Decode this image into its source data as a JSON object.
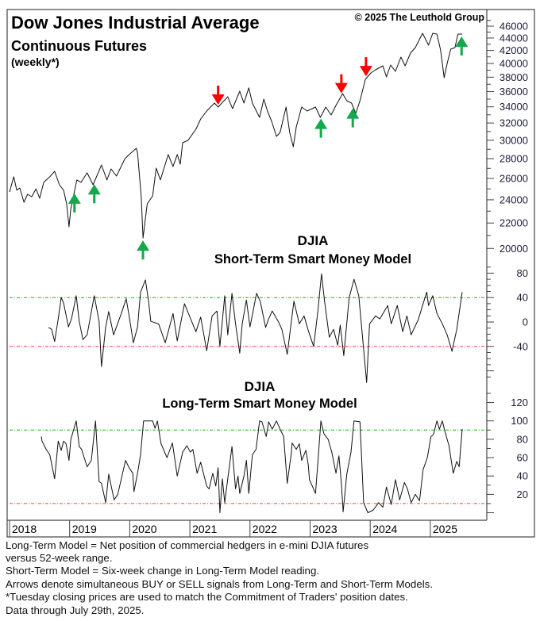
{
  "header": {
    "title": "Dow Jones Industrial Average",
    "subtitle": "Continuous Futures",
    "frequency": "(weekly*)",
    "copyright": "© 2025 The Leuthold Group"
  },
  "colors": {
    "buy": "#13a84a",
    "sell": "#ff0000",
    "upper_line": "#22b022",
    "lower_line": "#ff3b3b",
    "series": "#111111"
  },
  "x_axis": {
    "ticks": [
      2018,
      2019,
      2020,
      2021,
      2022,
      2023,
      2024,
      2025
    ],
    "labels": [
      "2018",
      "2019",
      "2020",
      "2021",
      "2022",
      "2023",
      "2024",
      "2025"
    ]
  },
  "chart_data": [
    {
      "type": "line",
      "name": "price",
      "title": "Dow Jones Industrial Average Continuous Futures (weekly*)",
      "yscale": "log",
      "ylim": [
        20000,
        46000
      ],
      "yticks": [
        20000,
        22000,
        24000,
        26000,
        28000,
        30000,
        32000,
        34000,
        36000,
        38000,
        40000,
        42000,
        44000,
        46000
      ],
      "ytick_labels": [
        "20000",
        "22000",
        "24000",
        "26000",
        "28000",
        "30000",
        "32000",
        "34000",
        "36000",
        "38000",
        "40000",
        "42000",
        "44000",
        "46000"
      ],
      "points": [
        [
          2018.0,
          24720
        ],
        [
          2018.07,
          26160
        ],
        [
          2018.12,
          24870
        ],
        [
          2018.17,
          25090
        ],
        [
          2018.24,
          23780
        ],
        [
          2018.3,
          24500
        ],
        [
          2018.37,
          24280
        ],
        [
          2018.44,
          25010
        ],
        [
          2018.5,
          24140
        ],
        [
          2018.57,
          25620
        ],
        [
          2018.67,
          26160
        ],
        [
          2018.75,
          26700
        ],
        [
          2018.83,
          25390
        ],
        [
          2018.9,
          24870
        ],
        [
          2018.95,
          23640
        ],
        [
          2018.99,
          21690
        ],
        [
          2019.02,
          23220
        ],
        [
          2019.12,
          25850
        ],
        [
          2019.19,
          25620
        ],
        [
          2019.29,
          26550
        ],
        [
          2019.39,
          25390
        ],
        [
          2019.53,
          27350
        ],
        [
          2019.62,
          25850
        ],
        [
          2019.69,
          26940
        ],
        [
          2019.78,
          26230
        ],
        [
          2019.92,
          28000
        ],
        [
          2020.02,
          28600
        ],
        [
          2020.11,
          29110
        ],
        [
          2020.13,
          28600
        ],
        [
          2020.19,
          24350
        ],
        [
          2020.22,
          20800
        ],
        [
          2020.29,
          23640
        ],
        [
          2020.38,
          24350
        ],
        [
          2020.44,
          27020
        ],
        [
          2020.51,
          25850
        ],
        [
          2020.64,
          28430
        ],
        [
          2020.72,
          27190
        ],
        [
          2020.79,
          28430
        ],
        [
          2020.84,
          27430
        ],
        [
          2020.88,
          29720
        ],
        [
          2020.97,
          29990
        ],
        [
          2021.1,
          31260
        ],
        [
          2021.18,
          32490
        ],
        [
          2021.28,
          33470
        ],
        [
          2021.41,
          34480
        ],
        [
          2021.47,
          33970
        ],
        [
          2021.63,
          35310
        ],
        [
          2021.71,
          33770
        ],
        [
          2021.83,
          36050
        ],
        [
          2021.9,
          34480
        ],
        [
          2021.98,
          36500
        ],
        [
          2022.04,
          34480
        ],
        [
          2022.16,
          32680
        ],
        [
          2022.23,
          35000
        ],
        [
          2022.29,
          33470
        ],
        [
          2022.36,
          32200
        ],
        [
          2022.44,
          30430
        ],
        [
          2022.5,
          30890
        ],
        [
          2022.6,
          33970
        ],
        [
          2022.66,
          30890
        ],
        [
          2022.72,
          29280
        ],
        [
          2022.77,
          31540
        ],
        [
          2022.86,
          33970
        ],
        [
          2022.95,
          33470
        ],
        [
          2023.09,
          33970
        ],
        [
          2023.17,
          32680
        ],
        [
          2023.26,
          33970
        ],
        [
          2023.35,
          32980
        ],
        [
          2023.43,
          34180
        ],
        [
          2023.54,
          35730
        ],
        [
          2023.61,
          34790
        ],
        [
          2023.69,
          34480
        ],
        [
          2023.76,
          33170
        ],
        [
          2023.83,
          34790
        ],
        [
          2023.92,
          37700
        ],
        [
          2024.01,
          38600
        ],
        [
          2024.09,
          39060
        ],
        [
          2024.21,
          39650
        ],
        [
          2024.27,
          38030
        ],
        [
          2024.34,
          39770
        ],
        [
          2024.42,
          38830
        ],
        [
          2024.51,
          40970
        ],
        [
          2024.58,
          39650
        ],
        [
          2024.67,
          41580
        ],
        [
          2024.75,
          42450
        ],
        [
          2024.87,
          44790
        ],
        [
          2024.97,
          42840
        ],
        [
          2025.04,
          44790
        ],
        [
          2025.11,
          44650
        ],
        [
          2025.17,
          42070
        ],
        [
          2025.23,
          37920
        ],
        [
          2025.28,
          40000
        ],
        [
          2025.34,
          42200
        ],
        [
          2025.41,
          42450
        ],
        [
          2025.46,
          44650
        ],
        [
          2025.53,
          44650
        ]
      ],
      "signals": [
        {
          "date": 2019.08,
          "type": "buy"
        },
        {
          "date": 2019.41,
          "type": "buy"
        },
        {
          "date": 2020.22,
          "type": "buy"
        },
        {
          "date": 2021.47,
          "type": "sell"
        },
        {
          "date": 2023.18,
          "type": "buy"
        },
        {
          "date": 2023.52,
          "type": "sell"
        },
        {
          "date": 2023.71,
          "type": "buy"
        },
        {
          "date": 2023.93,
          "type": "sell"
        },
        {
          "date": 2025.52,
          "type": "buy"
        }
      ]
    },
    {
      "type": "line",
      "name": "short_term",
      "title_line1": "DJIA",
      "title_line2": "Short-Term Smart Money Model",
      "ylim": [
        -100,
        80
      ],
      "yticks": [
        -40,
        0,
        40,
        80
      ],
      "ytick_labels": [
        "-40",
        "0",
        "40",
        "80"
      ],
      "reference_lines": {
        "upper": 40,
        "lower": -40
      },
      "points": [
        [
          2018.65,
          -9
        ],
        [
          2018.7,
          -12
        ],
        [
          2018.75,
          -32
        ],
        [
          2018.81,
          5
        ],
        [
          2018.86,
          40
        ],
        [
          2018.9,
          31
        ],
        [
          2018.98,
          -8
        ],
        [
          2019.03,
          5
        ],
        [
          2019.11,
          43
        ],
        [
          2019.16,
          1
        ],
        [
          2019.22,
          -29
        ],
        [
          2019.29,
          -21
        ],
        [
          2019.41,
          43
        ],
        [
          2019.49,
          1
        ],
        [
          2019.53,
          -73
        ],
        [
          2019.6,
          -8
        ],
        [
          2019.65,
          17
        ],
        [
          2019.73,
          -21
        ],
        [
          2019.86,
          14
        ],
        [
          2019.94,
          38
        ],
        [
          2019.99,
          10
        ],
        [
          2020.06,
          -34
        ],
        [
          2020.13,
          -8
        ],
        [
          2020.18,
          49
        ],
        [
          2020.26,
          69
        ],
        [
          2020.31,
          36
        ],
        [
          2020.35,
          1
        ],
        [
          2020.48,
          -3
        ],
        [
          2020.59,
          -34
        ],
        [
          2020.72,
          14
        ],
        [
          2020.79,
          -31
        ],
        [
          2020.91,
          30
        ],
        [
          2021.1,
          -16
        ],
        [
          2021.18,
          8
        ],
        [
          2021.28,
          -47
        ],
        [
          2021.37,
          10
        ],
        [
          2021.45,
          18
        ],
        [
          2021.5,
          -40
        ],
        [
          2021.58,
          43
        ],
        [
          2021.63,
          -21
        ],
        [
          2021.7,
          47
        ],
        [
          2021.76,
          -3
        ],
        [
          2021.83,
          -51
        ],
        [
          2021.87,
          -3
        ],
        [
          2021.94,
          36
        ],
        [
          2022.0,
          -8
        ],
        [
          2022.11,
          47
        ],
        [
          2022.17,
          34
        ],
        [
          2022.26,
          -9
        ],
        [
          2022.31,
          5
        ],
        [
          2022.37,
          18
        ],
        [
          2022.47,
          1
        ],
        [
          2022.53,
          -12
        ],
        [
          2022.62,
          -53
        ],
        [
          2022.73,
          34
        ],
        [
          2022.82,
          -3
        ],
        [
          2022.9,
          10
        ],
        [
          2022.97,
          -14
        ],
        [
          2023.06,
          -40
        ],
        [
          2023.13,
          18
        ],
        [
          2023.19,
          79
        ],
        [
          2023.24,
          34
        ],
        [
          2023.32,
          -25
        ],
        [
          2023.39,
          -12
        ],
        [
          2023.46,
          -38
        ],
        [
          2023.5,
          -5
        ],
        [
          2023.56,
          -55
        ],
        [
          2023.65,
          40
        ],
        [
          2023.73,
          70
        ],
        [
          2023.81,
          43
        ],
        [
          2023.94,
          -99
        ],
        [
          2023.99,
          -3
        ],
        [
          2024.09,
          10
        ],
        [
          2024.16,
          5
        ],
        [
          2024.29,
          27
        ],
        [
          2024.35,
          -3
        ],
        [
          2024.45,
          27
        ],
        [
          2024.54,
          -16
        ],
        [
          2024.61,
          10
        ],
        [
          2024.68,
          -21
        ],
        [
          2024.8,
          4
        ],
        [
          2024.87,
          27
        ],
        [
          2024.94,
          49
        ],
        [
          2024.97,
          27
        ],
        [
          2025.04,
          43
        ],
        [
          2025.11,
          14
        ],
        [
          2025.2,
          -3
        ],
        [
          2025.28,
          -21
        ],
        [
          2025.36,
          -48
        ],
        [
          2025.44,
          -12
        ],
        [
          2025.53,
          49
        ]
      ]
    },
    {
      "type": "line",
      "name": "long_term",
      "title_line1": "DJIA",
      "title_line2": "Long-Term Smart Money Model",
      "ylim": [
        0,
        130
      ],
      "yticks": [
        20,
        40,
        60,
        80,
        100,
        120
      ],
      "ytick_labels": [
        "20",
        "40",
        "60",
        "80",
        "100",
        "120"
      ],
      "reference_lines": {
        "upper": 90,
        "lower": 10
      },
      "points": [
        [
          2018.53,
          83
        ],
        [
          2018.54,
          78
        ],
        [
          2018.61,
          69
        ],
        [
          2018.67,
          63
        ],
        [
          2018.75,
          37
        ],
        [
          2018.81,
          78
        ],
        [
          2018.86,
          68
        ],
        [
          2018.9,
          78
        ],
        [
          2018.94,
          75
        ],
        [
          2018.99,
          57
        ],
        [
          2019.02,
          80
        ],
        [
          2019.11,
          100
        ],
        [
          2019.16,
          72
        ],
        [
          2019.2,
          69
        ],
        [
          2019.29,
          50
        ],
        [
          2019.36,
          57
        ],
        [
          2019.43,
          100
        ],
        [
          2019.49,
          34
        ],
        [
          2019.53,
          32
        ],
        [
          2019.6,
          11
        ],
        [
          2019.65,
          42
        ],
        [
          2019.74,
          14
        ],
        [
          2019.8,
          20
        ],
        [
          2019.93,
          57
        ],
        [
          2019.99,
          49
        ],
        [
          2020.05,
          43
        ],
        [
          2020.07,
          23
        ],
        [
          2020.13,
          43
        ],
        [
          2020.18,
          63
        ],
        [
          2020.23,
          100
        ],
        [
          2020.38,
          100
        ],
        [
          2020.42,
          92
        ],
        [
          2020.46,
          100
        ],
        [
          2020.52,
          75
        ],
        [
          2020.62,
          60
        ],
        [
          2020.71,
          76
        ],
        [
          2020.79,
          40
        ],
        [
          2020.88,
          66
        ],
        [
          2020.95,
          73
        ],
        [
          2021.01,
          66
        ],
        [
          2021.05,
          69
        ],
        [
          2021.12,
          43
        ],
        [
          2021.18,
          55
        ],
        [
          2021.28,
          29
        ],
        [
          2021.32,
          26
        ],
        [
          2021.38,
          43
        ],
        [
          2021.43,
          29
        ],
        [
          2021.47,
          49
        ],
        [
          2021.5,
          0
        ],
        [
          2021.54,
          37
        ],
        [
          2021.58,
          11
        ],
        [
          2021.63,
          37
        ],
        [
          2021.7,
          72
        ],
        [
          2021.76,
          26
        ],
        [
          2021.8,
          40
        ],
        [
          2021.83,
          21
        ],
        [
          2021.9,
          40
        ],
        [
          2021.94,
          57
        ],
        [
          2021.98,
          21
        ],
        [
          2022.04,
          63
        ],
        [
          2022.1,
          69
        ],
        [
          2022.16,
          100
        ],
        [
          2022.2,
          99
        ],
        [
          2022.27,
          83
        ],
        [
          2022.31,
          99
        ],
        [
          2022.37,
          91
        ],
        [
          2022.44,
          100
        ],
        [
          2022.5,
          91
        ],
        [
          2022.56,
          83
        ],
        [
          2022.62,
          32
        ],
        [
          2022.69,
          66
        ],
        [
          2022.7,
          76
        ],
        [
          2022.77,
          69
        ],
        [
          2022.82,
          75
        ],
        [
          2022.86,
          57
        ],
        [
          2022.93,
          68
        ],
        [
          2022.97,
          52
        ],
        [
          2022.99,
          36
        ],
        [
          2023.09,
          21
        ],
        [
          2023.13,
          55
        ],
        [
          2023.18,
          100
        ],
        [
          2023.23,
          86
        ],
        [
          2023.3,
          80
        ],
        [
          2023.36,
          66
        ],
        [
          2023.43,
          43
        ],
        [
          2023.48,
          62
        ],
        [
          2023.52,
          32
        ],
        [
          2023.55,
          1
        ],
        [
          2023.61,
          42
        ],
        [
          2023.68,
          66
        ],
        [
          2023.73,
          100
        ],
        [
          2023.83,
          99
        ],
        [
          2023.89,
          11
        ],
        [
          2023.96,
          0
        ],
        [
          2024.05,
          3
        ],
        [
          2024.14,
          11
        ],
        [
          2024.21,
          6
        ],
        [
          2024.27,
          28
        ],
        [
          2024.35,
          9
        ],
        [
          2024.42,
          36
        ],
        [
          2024.49,
          14
        ],
        [
          2024.57,
          33
        ],
        [
          2024.62,
          26
        ],
        [
          2024.68,
          11
        ],
        [
          2024.75,
          20
        ],
        [
          2024.82,
          13
        ],
        [
          2024.88,
          47
        ],
        [
          2024.95,
          60
        ],
        [
          2025.01,
          83
        ],
        [
          2025.05,
          85
        ],
        [
          2025.11,
          100
        ],
        [
          2025.15,
          91
        ],
        [
          2025.2,
          100
        ],
        [
          2025.24,
          89
        ],
        [
          2025.31,
          73
        ],
        [
          2025.38,
          43
        ],
        [
          2025.44,
          56
        ],
        [
          2025.48,
          50
        ],
        [
          2025.53,
          91
        ]
      ]
    }
  ],
  "footnotes": [
    "Long-Term Model = Net position of commercial hedgers in e-mini DJIA futures",
    "versus 52-week range.",
    "Short-Term Model = Six-week change in Long-Term Model reading.",
    "Arrows denote simultaneous BUY or SELL signals from Long-Term and Short-Term Models.",
    "*Tuesday closing prices are used to match the Commitment of Traders' position dates.",
    "Data through July 29th, 2025."
  ]
}
